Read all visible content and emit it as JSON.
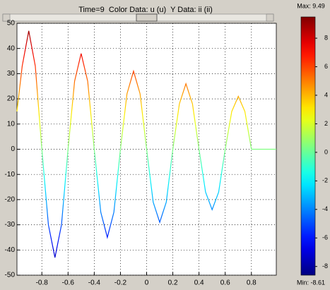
{
  "chart_data": {
    "type": "line",
    "title": "Time=9  Color Data: u (u)  Y Data: ii (ii)",
    "x": [
      -0.99,
      -0.95,
      -0.9,
      -0.85,
      -0.8,
      -0.75,
      -0.7,
      -0.65,
      -0.6,
      -0.55,
      -0.5,
      -0.45,
      -0.4,
      -0.35,
      -0.3,
      -0.25,
      -0.2,
      -0.15,
      -0.1,
      -0.05,
      0,
      0.05,
      0.1,
      0.15,
      0.2,
      0.25,
      0.3,
      0.35,
      0.4,
      0.45,
      0.5,
      0.55,
      0.6,
      0.65,
      0.7,
      0.75,
      0.8,
      0.9,
      0.99
    ],
    "series": [
      {
        "values": [
          15,
          33,
          47,
          33,
          0,
          -30,
          -43,
          -30,
          0,
          27,
          38,
          27,
          0,
          -25,
          -35,
          -25,
          0,
          22,
          31,
          22,
          0,
          -21,
          -29,
          -21,
          0,
          18,
          26,
          18,
          0,
          -17,
          -24,
          -17,
          0,
          15,
          21,
          15,
          0,
          0,
          0
        ]
      }
    ],
    "xlim": [
      -0.99,
      0.99
    ],
    "ylim": [
      -50,
      50
    ],
    "xticks": [
      -0.8,
      -0.6,
      -0.4,
      -0.2,
      0,
      0.2,
      0.4,
      0.6,
      0.8
    ],
    "yticks": [
      -50,
      -40,
      -30,
      -20,
      -10,
      0,
      10,
      20,
      30,
      40,
      50
    ],
    "grid": true,
    "colormap": "jet",
    "colorbar": {
      "clim": [
        -8.61,
        9.49
      ],
      "ticks": [
        -8,
        -6,
        -4,
        -2,
        0,
        2,
        4,
        6,
        8
      ],
      "max_label": "Max: 9.49",
      "min_label": "Min: -8.61"
    }
  }
}
